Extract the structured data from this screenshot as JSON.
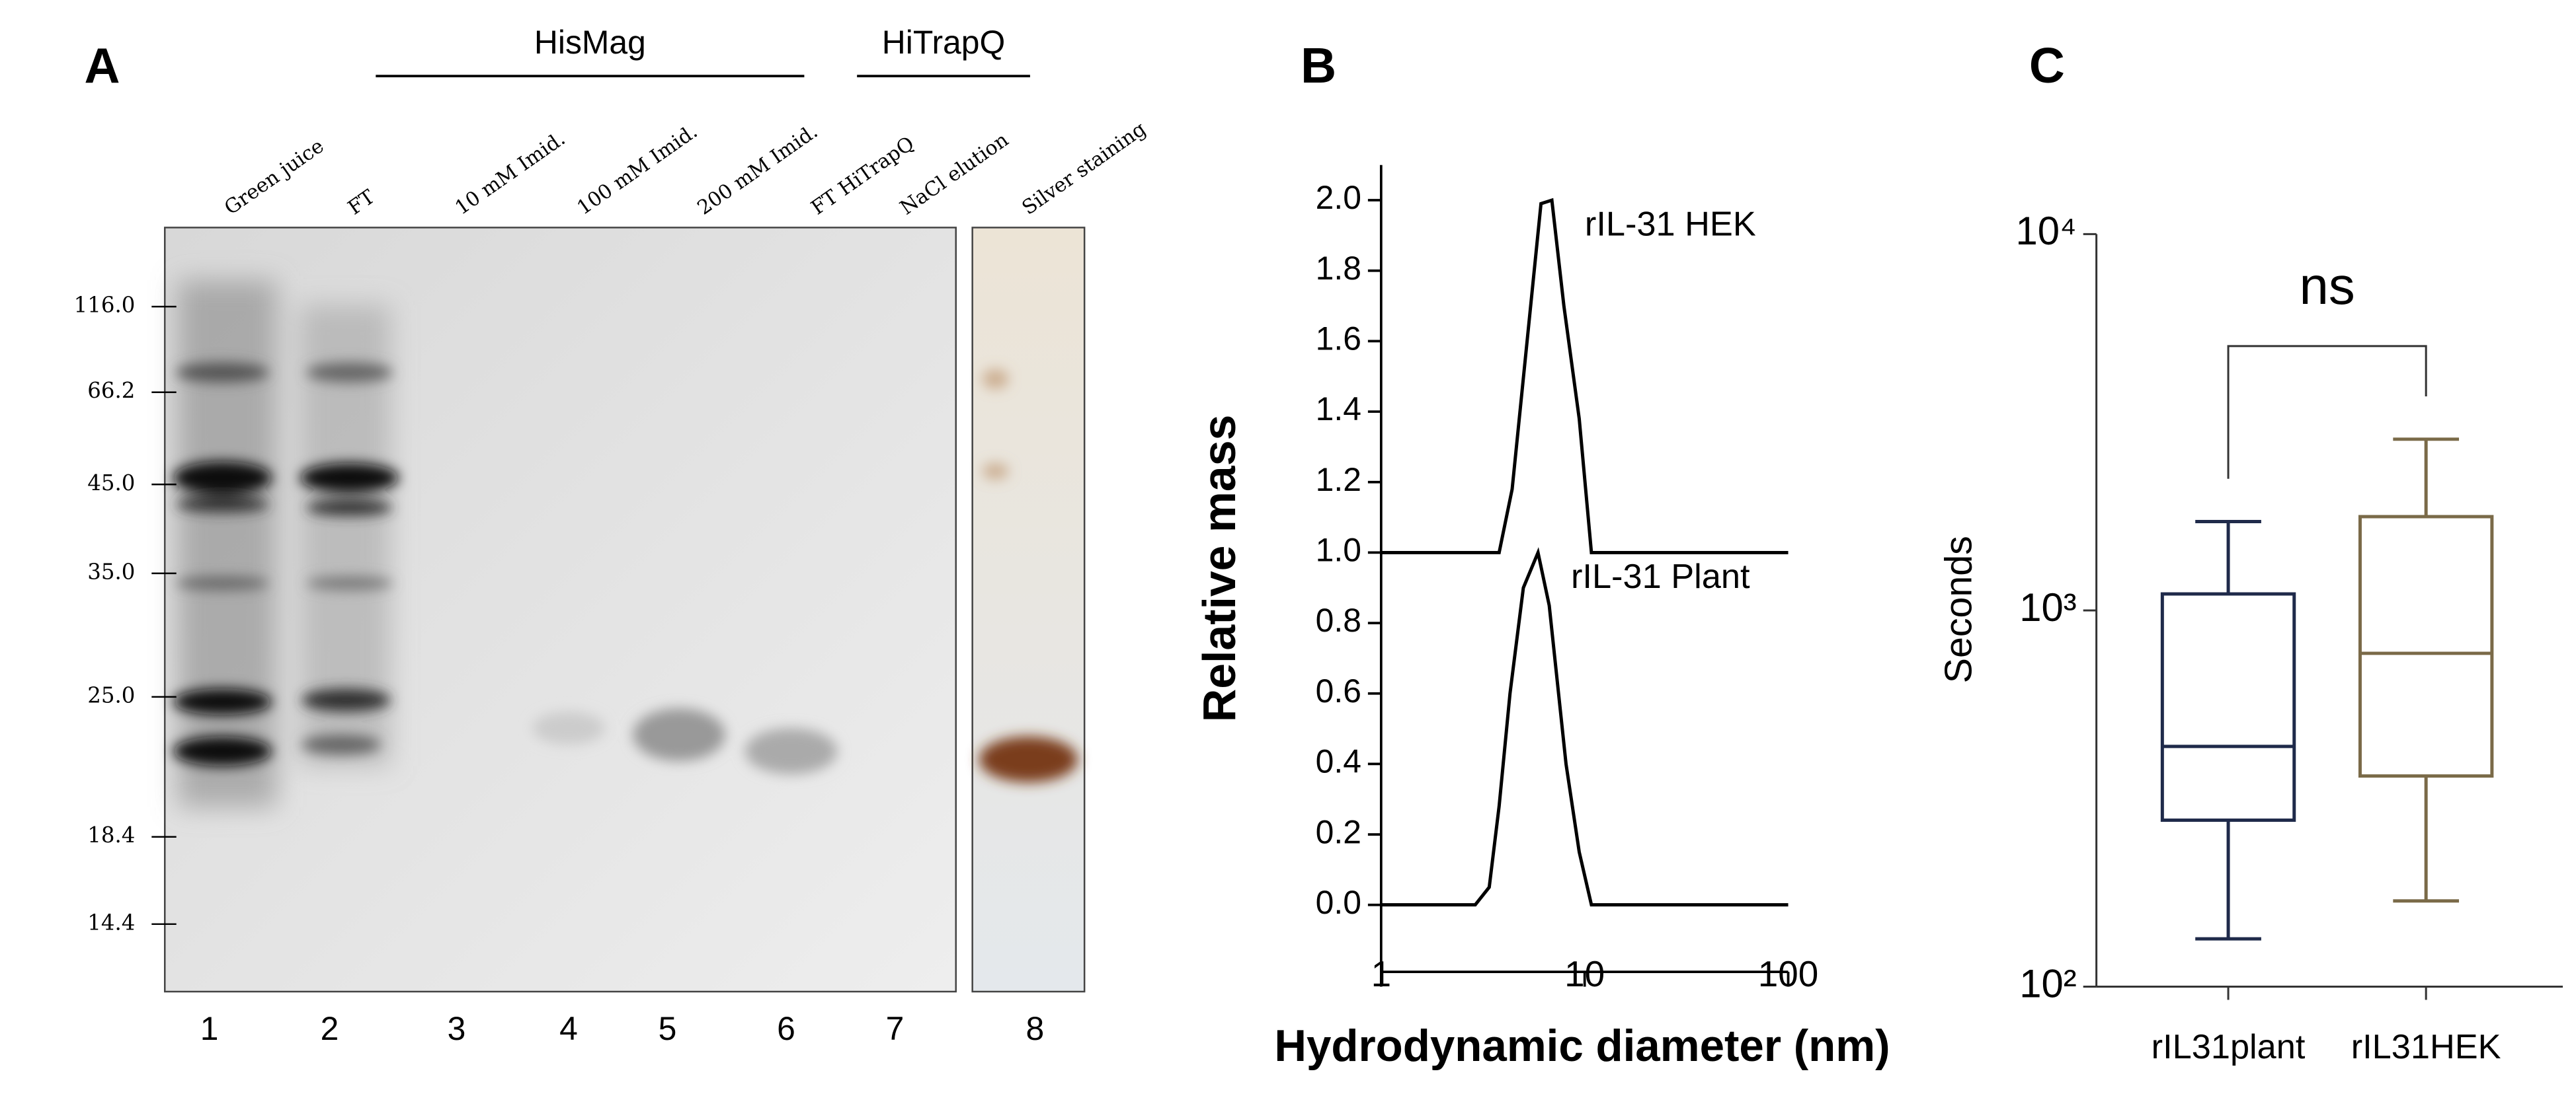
{
  "gel": {
    "panel": "A",
    "groups": [
      {
        "label": "HisMag"
      },
      {
        "label": "HiTrapQ"
      }
    ],
    "lanes": [
      "Green juice",
      "FT",
      "10 mM Imid.",
      "100 mM Imid.",
      "200 mM Imid.",
      "FT HiTrapQ",
      "NaCl elution",
      "Silver staining"
    ],
    "lane_numbers": [
      "1",
      "2",
      "3",
      "4",
      "5",
      "6",
      "7",
      "8"
    ],
    "markers": [
      "116.0",
      "66.2",
      "45.0",
      "35.0",
      "25.0",
      "18.4",
      "14.4"
    ]
  },
  "chart_data": [
    {
      "panel": "B",
      "type": "line",
      "xlabel": "Hydrodynamic diameter (nm)",
      "ylabel": "Relative mass",
      "log_x": true,
      "xlim": [
        1,
        100
      ],
      "xticks": [
        1,
        10,
        100
      ],
      "ylim": [
        -0.19,
        2.1
      ],
      "yticks": [
        {
          "value": 0,
          "label": "0.0"
        },
        {
          "value": 0.2,
          "label": "0.2"
        },
        {
          "value": 0.4,
          "label": "0.4"
        },
        {
          "value": 0.6,
          "label": "0.6"
        },
        {
          "value": 0.8,
          "label": "0.8"
        },
        {
          "value": 1,
          "label": "1.0"
        },
        {
          "value": 1.2,
          "label": "1.2"
        },
        {
          "value": 1.4,
          "label": "1.4"
        },
        {
          "value": 1.6,
          "label": "1.6"
        },
        {
          "value": 1.8,
          "label": "1.8"
        },
        {
          "value": 2,
          "label": "2.0"
        }
      ],
      "series": [
        {
          "name": "rIL-31 HEK",
          "color": "#000000",
          "x": [
            1,
            3.8,
            4.4,
            6.1,
            6.9,
            7.9,
            9.4,
            10.8,
            100
          ],
          "values": [
            1.0,
            1.0,
            1.18,
            1.99,
            2.0,
            1.7,
            1.38,
            1.0,
            1.0
          ]
        },
        {
          "name": "rIL-31 Plant",
          "color": "#000000",
          "x": [
            1,
            2.9,
            3.4,
            3.8,
            4.3,
            5.0,
            5.9,
            6.7,
            8.1,
            9.4,
            10.8,
            100
          ],
          "values": [
            0,
            0,
            0.05,
            0.28,
            0.6,
            0.9,
            1.0,
            0.85,
            0.4,
            0.15,
            0,
            0
          ]
        }
      ]
    },
    {
      "panel": "C",
      "type": "box",
      "ylabel": "Seconds",
      "log_y": true,
      "ylim": [
        100,
        10000
      ],
      "yticks": [
        {
          "value": 100,
          "label": "10²"
        },
        {
          "value": 1000,
          "label": "10³"
        },
        {
          "value": 10000,
          "label": "10⁴"
        }
      ],
      "categories": [
        "rIL31plant",
        "rIL31HEK"
      ],
      "colors": [
        "#1f2a4a",
        "#7a6a48"
      ],
      "min": [
        134,
        169
      ],
      "q1": [
        277,
        363
      ],
      "median": [
        435,
        769
      ],
      "q3": [
        1106,
        1775
      ],
      "max": [
        1722,
        2851
      ],
      "annotation": "ns"
    }
  ]
}
